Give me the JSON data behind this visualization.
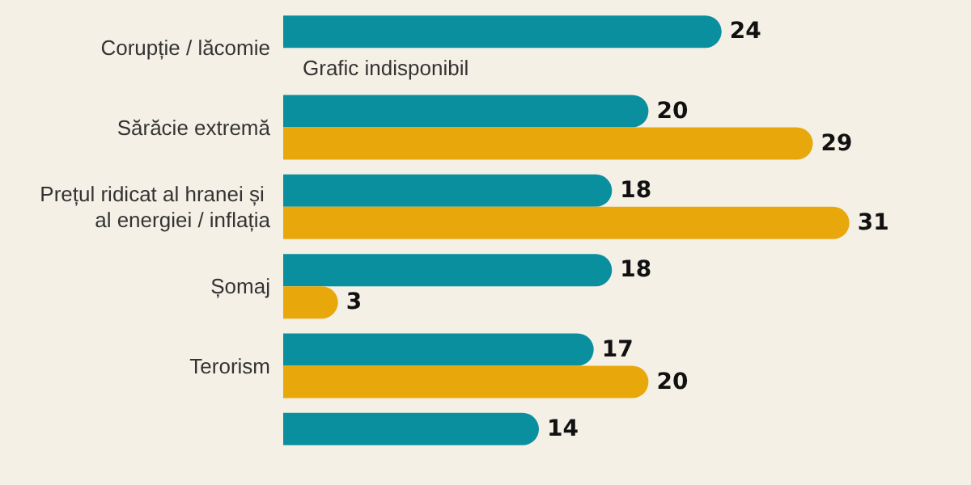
{
  "chart_data": {
    "type": "bar",
    "orientation": "horizontal",
    "categories": [
      "Corupție / lăcomie",
      "Sărăcie extremă",
      "Prețul ridicat al hranei și al energiei / inflația",
      "Șomaj",
      "Terorism",
      null
    ],
    "series": [
      {
        "color": "#0a8f9f",
        "values": [
          24,
          20,
          18,
          18,
          17,
          14
        ]
      },
      {
        "color": "#e8a80c",
        "values": [
          null,
          29,
          31,
          3,
          20,
          null
        ]
      }
    ],
    "data_labels": true,
    "grid": false,
    "annotations": [
      "Grafic indisponibil"
    ]
  }
}
